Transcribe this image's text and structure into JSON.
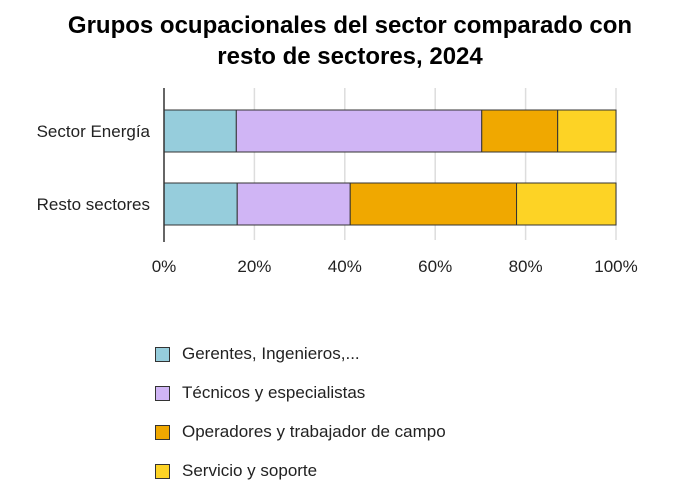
{
  "chart_data": {
    "type": "bar",
    "orientation": "horizontal",
    "stacked": true,
    "title": "Grupos ocupacionales del sector comparado con resto de sectores, 2024",
    "title_lines": [
      "Grupos ocupacionales del sector comparado con",
      "resto de sectores, 2024"
    ],
    "categories": [
      "Sector Energía",
      "Resto sectores"
    ],
    "series": [
      {
        "name": "Gerentes, Ingenieros,...",
        "color": "#96cddc",
        "values": [
          16.0,
          16.2
        ]
      },
      {
        "name": "Técnicos y especialistas",
        "color": "#d0b5f5",
        "values": [
          54.3,
          25.0
        ]
      },
      {
        "name": "Operadores y trabajador de campo",
        "color": "#f0a800",
        "values": [
          16.8,
          36.8
        ]
      },
      {
        "name": "Servicio y soporte",
        "color": "#fdd325",
        "values": [
          12.9,
          22.0
        ]
      }
    ],
    "xlim": [
      0,
      100
    ],
    "xticks": [
      "0%",
      "20%",
      "40%",
      "60%",
      "80%",
      "100%"
    ],
    "xlabel": "",
    "ylabel": "",
    "grid": true,
    "legend_position": "bottom"
  }
}
